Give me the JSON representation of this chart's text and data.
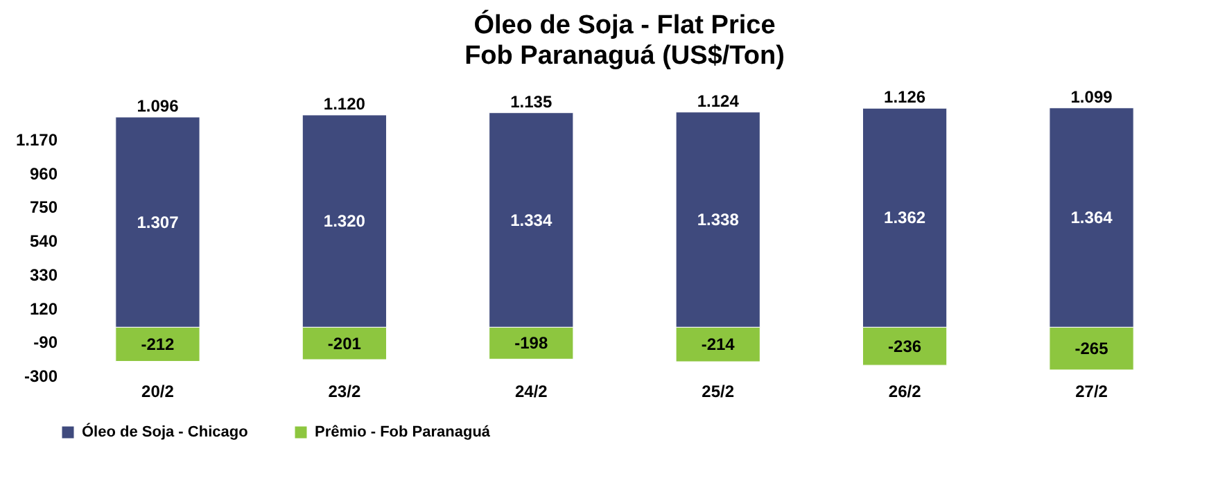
{
  "chart_data": {
    "type": "bar",
    "title": "Óleo de Soja - Flat Price",
    "subtitle": "Fob Paranaguá (US$/Ton)",
    "categories": [
      "20/2",
      "23/2",
      "24/2",
      "25/2",
      "26/2",
      "27/2"
    ],
    "stacked": true,
    "series": [
      {
        "name": "Óleo de Soja - Chicago",
        "color": "#3f4a7d",
        "values": [
          1307,
          1320,
          1334,
          1338,
          1362,
          1364
        ],
        "value_labels": [
          "1.307",
          "1.320",
          "1.334",
          "1.338",
          "1.362",
          "1.364"
        ]
      },
      {
        "name": "Prêmio - Fob Paranaguá",
        "color": "#8dc63f",
        "values": [
          -212,
          -201,
          -198,
          -214,
          -236,
          -265
        ],
        "value_labels": [
          "-212",
          "-201",
          "-198",
          "-214",
          "-236",
          "-265"
        ]
      }
    ],
    "totals": [
      "1.096",
      "1.120",
      "1.135",
      "1.124",
      "1.126",
      "1.099"
    ],
    "ylim": [
      -300,
      1380
    ],
    "yticks": [
      {
        "value": -300,
        "label": "-300"
      },
      {
        "value": -90,
        "label": "-90"
      },
      {
        "value": 120,
        "label": "120"
      },
      {
        "value": 330,
        "label": "330"
      },
      {
        "value": 540,
        "label": "540"
      },
      {
        "value": 750,
        "label": "750"
      },
      {
        "value": 960,
        "label": "960"
      },
      {
        "value": 1170,
        "label": "1.170"
      }
    ],
    "grid": false,
    "legend": "bottom"
  }
}
